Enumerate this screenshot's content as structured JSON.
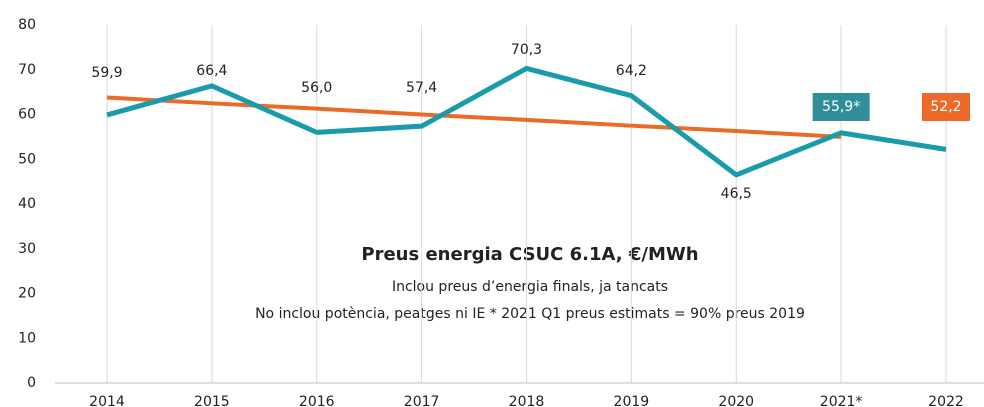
{
  "chart_data": {
    "type": "line",
    "annotations": [
      "Preus energia CSUC 6.1A, €/MWh",
      "Inclou preus d’energia finals, ja tancats",
      "No inclou potència, peatges ni IE   * 2021 Q1 preus estimats = 90% preus 2019"
    ],
    "categories": [
      "2014",
      "2015",
      "2016",
      "2017",
      "2018",
      "2019",
      "2020",
      "2021*",
      "2022"
    ],
    "series": [
      {
        "color": "#ec6a27",
        "values": [
          63.8,
          62.5,
          61.3,
          60.0,
          58.8,
          57.5,
          56.3,
          55.0,
          null
        ]
      },
      {
        "color": "#1a9bab",
        "values": [
          59.9,
          66.4,
          56.0,
          57.4,
          70.3,
          64.2,
          46.5,
          55.9,
          52.2
        ],
        "value_labels": [
          "59,9",
          "66,4",
          "56,0",
          "57,4",
          "70,3",
          "64,2",
          "46,5",
          "55,9*",
          "52,2"
        ]
      }
    ],
    "ylim": [
      0,
      80
    ],
    "yticks": [
      0,
      10,
      20,
      30,
      40,
      50,
      60,
      70,
      80
    ],
    "grid": true
  }
}
